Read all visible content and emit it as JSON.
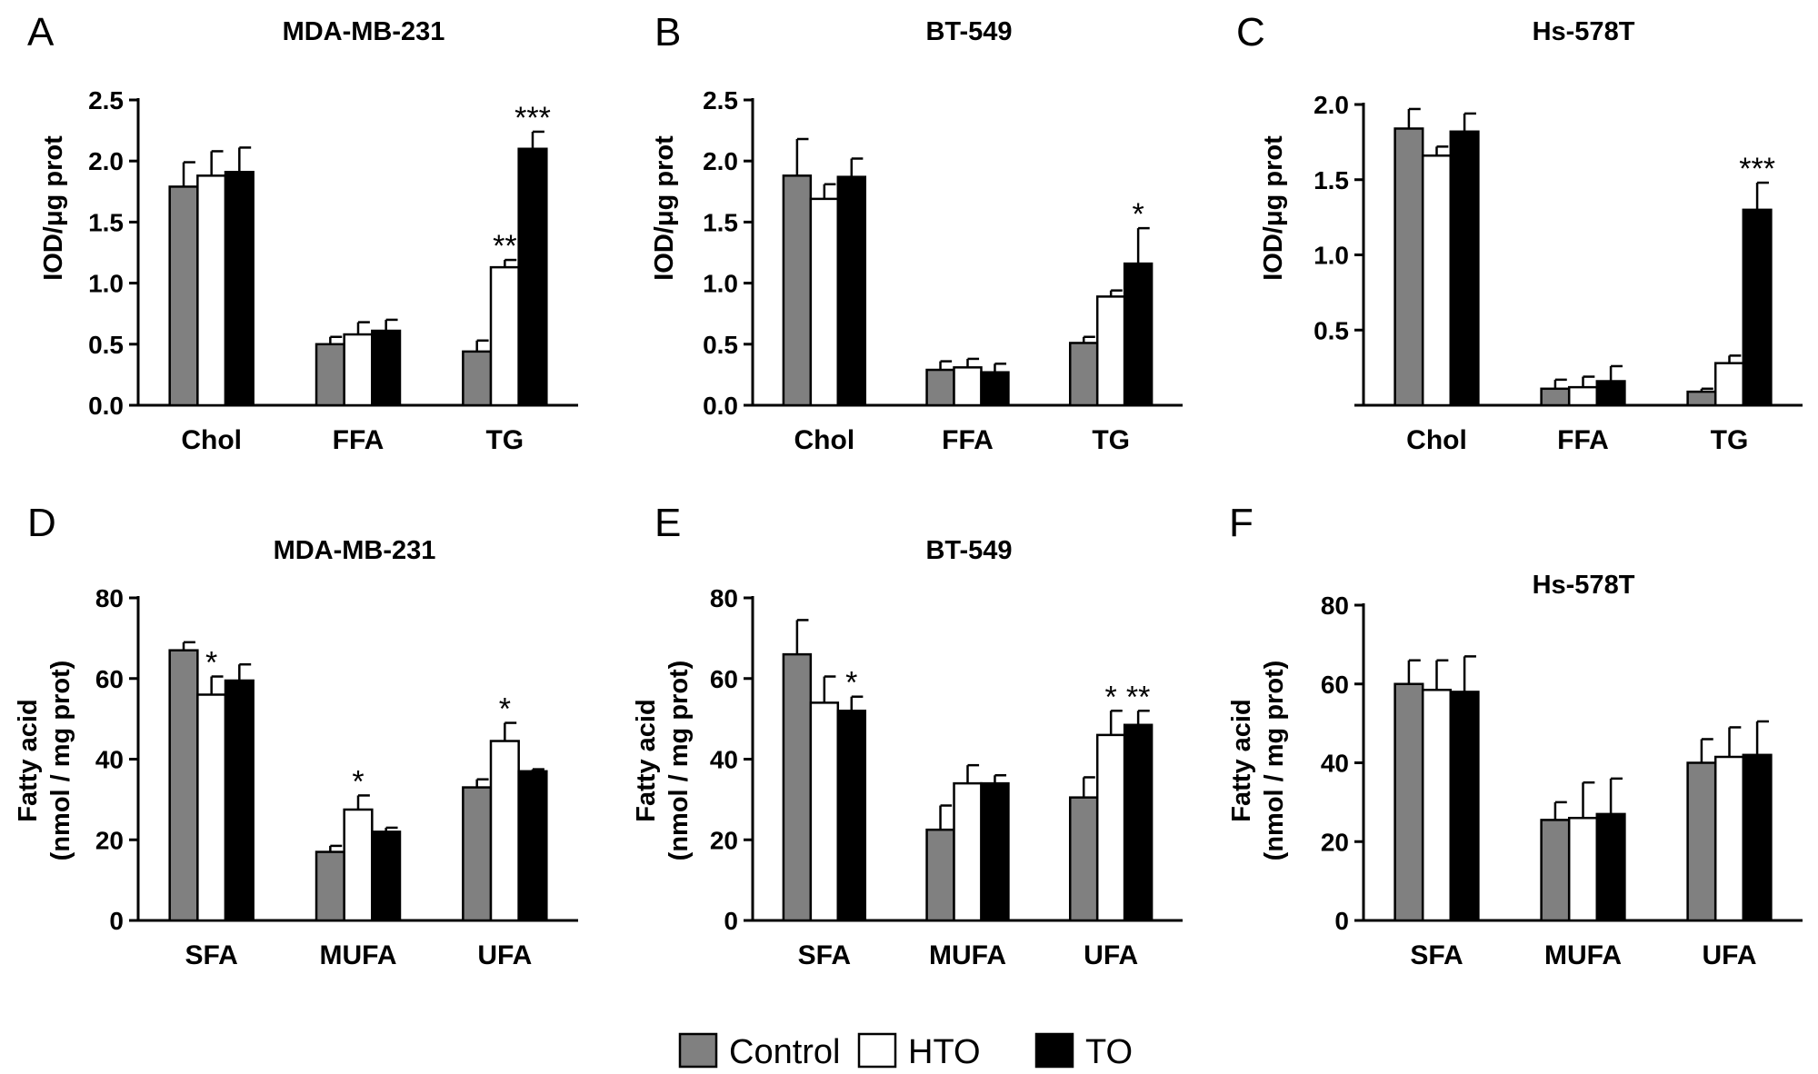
{
  "legend": {
    "items": [
      {
        "label": "Control",
        "color": "#808080"
      },
      {
        "label": "HTO",
        "color": "#ffffff"
      },
      {
        "label": "TO",
        "color": "#000000"
      }
    ]
  },
  "chart_data": [
    {
      "panel": "A",
      "title": "MDA-MB-231",
      "type": "bar",
      "ylabel": "IOD/μg prot",
      "ylim": [
        0,
        2.5
      ],
      "yticks": [
        "0.0",
        "0.5",
        "1.0",
        "1.5",
        "2.0",
        "2.5"
      ],
      "categories": [
        "Chol",
        "FFA",
        "TG"
      ],
      "series": [
        {
          "name": "Control",
          "values": [
            1.79,
            0.5,
            0.44
          ],
          "errors": [
            0.2,
            0.06,
            0.09
          ]
        },
        {
          "name": "HTO",
          "values": [
            1.88,
            0.58,
            1.13
          ],
          "errors": [
            0.2,
            0.1,
            0.06
          ]
        },
        {
          "name": "TO",
          "values": [
            1.91,
            0.61,
            2.1
          ],
          "errors": [
            0.2,
            0.09,
            0.14
          ]
        }
      ],
      "significance": [
        {
          "category": "TG",
          "series": "HTO",
          "label": "**"
        },
        {
          "category": "TG",
          "series": "TO",
          "label": "***"
        }
      ]
    },
    {
      "panel": "B",
      "title": "BT-549",
      "type": "bar",
      "ylabel": "IOD/μg prot",
      "ylim": [
        0,
        2.5
      ],
      "yticks": [
        "0.0",
        "0.5",
        "1.0",
        "1.5",
        "2.0",
        "2.5"
      ],
      "categories": [
        "Chol",
        "FFA",
        "TG"
      ],
      "series": [
        {
          "name": "Control",
          "values": [
            1.88,
            0.29,
            0.51
          ],
          "errors": [
            0.3,
            0.07,
            0.05
          ]
        },
        {
          "name": "HTO",
          "values": [
            1.69,
            0.31,
            0.89
          ],
          "errors": [
            0.12,
            0.07,
            0.05
          ]
        },
        {
          "name": "TO",
          "values": [
            1.87,
            0.27,
            1.16
          ],
          "errors": [
            0.15,
            0.07,
            0.29
          ]
        }
      ],
      "significance": [
        {
          "category": "TG",
          "series": "TO",
          "label": "*"
        }
      ]
    },
    {
      "panel": "C",
      "title": "Hs-578T",
      "type": "bar",
      "ylabel": "IOD/μg prot",
      "ylim": [
        0,
        2.0
      ],
      "yticks": [
        "",
        "0.5",
        "1.0",
        "1.5",
        "2.0"
      ],
      "categories": [
        "Chol",
        "FFA",
        "TG"
      ],
      "series": [
        {
          "name": "Control",
          "values": [
            1.84,
            0.11,
            0.09
          ],
          "errors": [
            0.13,
            0.06,
            0.02
          ]
        },
        {
          "name": "HTO",
          "values": [
            1.66,
            0.12,
            0.28
          ],
          "errors": [
            0.06,
            0.07,
            0.05
          ]
        },
        {
          "name": "TO",
          "values": [
            1.82,
            0.16,
            1.3
          ],
          "errors": [
            0.12,
            0.1,
            0.18
          ]
        }
      ],
      "significance": [
        {
          "category": "TG",
          "series": "TO",
          "label": "***"
        }
      ]
    },
    {
      "panel": "D",
      "title": "MDA-MB-231",
      "type": "bar",
      "ylabel": "Fatty acid",
      "ylabel2": "(nmol / mg prot)",
      "ylim": [
        0,
        80
      ],
      "yticks": [
        "0",
        "20",
        "40",
        "60",
        "80"
      ],
      "categories": [
        "SFA",
        "MUFA",
        "UFA"
      ],
      "series": [
        {
          "name": "Control",
          "values": [
            67,
            17,
            33
          ],
          "errors": [
            2,
            1.5,
            2
          ]
        },
        {
          "name": "HTO",
          "values": [
            56,
            27.5,
            44.5
          ],
          "errors": [
            4.5,
            3.5,
            4.5
          ]
        },
        {
          "name": "TO",
          "values": [
            59.5,
            22,
            37
          ],
          "errors": [
            4,
            1,
            0.5
          ]
        }
      ],
      "significance": [
        {
          "category": "SFA",
          "series": "HTO",
          "label": "*"
        },
        {
          "category": "MUFA",
          "series": "HTO",
          "label": "*"
        },
        {
          "category": "UFA",
          "series": "HTO",
          "label": "*"
        }
      ]
    },
    {
      "panel": "E",
      "title": "BT-549",
      "type": "bar",
      "ylabel": "Fatty acid",
      "ylabel2": "(nmol / mg prot)",
      "ylim": [
        0,
        80
      ],
      "yticks": [
        "0",
        "20",
        "40",
        "60",
        "80"
      ],
      "categories": [
        "SFA",
        "MUFA",
        "UFA"
      ],
      "series": [
        {
          "name": "Control",
          "values": [
            66,
            22.5,
            30.5
          ],
          "errors": [
            8.5,
            6,
            5
          ]
        },
        {
          "name": "HTO",
          "values": [
            54,
            34,
            46
          ],
          "errors": [
            6.5,
            4.5,
            6
          ]
        },
        {
          "name": "TO",
          "values": [
            52,
            34,
            48.5
          ],
          "errors": [
            3.5,
            2,
            3.5
          ]
        }
      ],
      "significance": [
        {
          "category": "SFA",
          "series": "TO",
          "label": "*"
        },
        {
          "category": "UFA",
          "series": "HTO",
          "label": "*"
        },
        {
          "category": "UFA",
          "series": "TO",
          "label": "**"
        }
      ]
    },
    {
      "panel": "F",
      "title": "Hs-578T",
      "type": "bar",
      "ylabel": "Fatty acid",
      "ylabel2": "(nmol / mg prot)",
      "ylim": [
        0,
        80
      ],
      "yticks": [
        "0",
        "20",
        "40",
        "60",
        "80"
      ],
      "categories": [
        "SFA",
        "MUFA",
        "UFA"
      ],
      "series": [
        {
          "name": "Control",
          "values": [
            60,
            25.5,
            40
          ],
          "errors": [
            6,
            4.5,
            6
          ]
        },
        {
          "name": "HTO",
          "values": [
            58.5,
            26,
            41.5
          ],
          "errors": [
            7.5,
            9,
            7.5
          ]
        },
        {
          "name": "TO",
          "values": [
            58,
            27,
            42
          ],
          "errors": [
            9,
            9,
            8.5
          ]
        }
      ],
      "significance": []
    }
  ]
}
